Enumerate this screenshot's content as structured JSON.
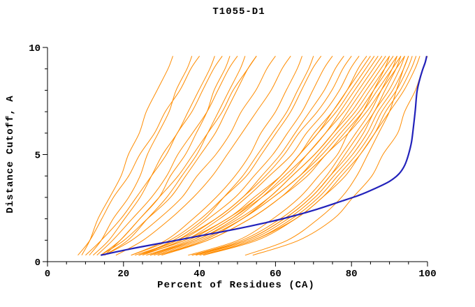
{
  "chart_data": {
    "type": "line",
    "title": "T1055-D1",
    "xlabel": "Percent of Residues (CA)",
    "ylabel": "Distance Cutoff, A",
    "xlim": [
      0,
      100
    ],
    "ylim": [
      0,
      10
    ],
    "x_major_ticks": [
      0,
      20,
      40,
      60,
      80,
      100
    ],
    "x_minor_step": 5,
    "y_major_ticks": [
      0,
      5,
      10
    ],
    "y_minor_step": 1,
    "grid": false,
    "legend": "none",
    "background_color": "#ffffff",
    "axis_color": "#000000",
    "prediction_color": "#ff8c00",
    "highlight_color": "#2222bb",
    "y_samples": [
      0.3,
      1,
      2,
      3,
      4,
      5,
      6,
      7,
      8,
      9,
      9.6
    ],
    "prediction_series_x": [
      [
        9,
        11,
        13,
        16,
        19,
        21,
        24,
        26,
        29,
        32,
        33
      ],
      [
        11,
        14,
        17,
        21,
        24,
        26,
        29,
        32,
        34,
        37,
        38
      ],
      [
        8,
        11,
        14,
        17,
        21,
        24,
        28,
        31,
        35,
        38,
        40
      ],
      [
        12,
        16,
        20,
        24,
        27,
        30,
        34,
        37,
        40,
        43,
        44
      ],
      [
        10,
        14,
        19,
        23,
        27,
        31,
        34,
        38,
        41,
        44,
        46
      ],
      [
        14,
        19,
        24,
        29,
        32,
        36,
        39,
        42,
        44,
        47,
        48
      ],
      [
        13,
        17,
        22,
        27,
        31,
        34,
        38,
        42,
        45,
        48,
        50
      ],
      [
        15,
        21,
        26,
        31,
        35,
        39,
        42,
        45,
        48,
        51,
        52
      ],
      [
        15,
        19,
        24,
        29,
        34,
        38,
        42,
        46,
        49,
        53,
        55
      ],
      [
        14,
        20,
        26,
        32,
        36,
        40,
        44,
        47,
        50,
        53,
        55
      ],
      [
        15,
        22,
        29,
        35,
        39,
        44,
        48,
        51,
        55,
        58,
        60
      ],
      [
        18,
        25,
        32,
        38,
        43,
        47,
        51,
        55,
        59,
        62,
        64
      ],
      [
        22,
        31,
        38,
        44,
        49,
        53,
        56,
        60,
        63,
        66,
        67
      ],
      [
        24,
        33,
        41,
        46,
        51,
        55,
        59,
        63,
        66,
        69,
        70
      ],
      [
        22,
        32,
        40,
        46,
        52,
        56,
        60,
        64,
        67,
        70,
        72
      ],
      [
        24,
        34,
        42,
        49,
        54,
        59,
        63,
        67,
        70,
        73,
        75
      ],
      [
        25,
        35,
        44,
        51,
        56,
        61,
        65,
        69,
        73,
        76,
        78
      ],
      [
        23,
        34,
        44,
        51,
        57,
        62,
        66,
        71,
        75,
        78,
        80
      ],
      [
        24,
        36,
        45,
        52,
        58,
        64,
        68,
        73,
        77,
        80,
        82
      ],
      [
        27,
        38,
        48,
        55,
        61,
        66,
        70,
        75,
        79,
        82,
        84
      ],
      [
        26,
        37,
        47,
        55,
        61,
        66,
        71,
        75,
        79,
        83,
        85
      ],
      [
        24,
        36,
        47,
        54,
        61,
        66,
        71,
        76,
        80,
        84,
        86
      ],
      [
        27,
        39,
        49,
        56,
        62,
        68,
        73,
        77,
        81,
        85,
        87
      ],
      [
        26,
        38,
        48,
        56,
        63,
        68,
        73,
        78,
        82,
        86,
        88
      ],
      [
        29,
        41,
        51,
        58,
        64,
        70,
        75,
        79,
        83,
        87,
        89
      ],
      [
        27,
        39,
        50,
        58,
        64,
        70,
        75,
        80,
        84,
        88,
        90
      ],
      [
        37,
        50,
        59,
        66,
        71,
        76,
        79,
        83,
        86,
        89,
        90
      ],
      [
        29,
        41,
        51,
        59,
        66,
        71,
        76,
        81,
        85,
        89,
        91
      ],
      [
        38,
        51,
        61,
        68,
        73,
        77,
        81,
        85,
        88,
        91,
        92
      ],
      [
        28,
        40,
        51,
        59,
        66,
        72,
        77,
        82,
        86,
        90,
        92
      ],
      [
        39,
        52,
        62,
        69,
        74,
        78,
        82,
        86,
        89,
        92,
        93
      ],
      [
        30,
        42,
        53,
        61,
        67,
        73,
        78,
        83,
        87,
        91,
        93
      ],
      [
        38,
        52,
        62,
        69,
        74,
        79,
        83,
        86,
        90,
        93,
        94
      ],
      [
        29,
        42,
        53,
        61,
        68,
        73,
        79,
        84,
        88,
        92,
        94
      ],
      [
        39,
        53,
        63,
        70,
        75,
        80,
        84,
        87,
        91,
        94,
        95
      ],
      [
        52,
        63,
        71,
        77,
        81,
        84,
        87,
        90,
        92,
        94,
        95
      ],
      [
        40,
        54,
        64,
        71,
        76,
        81,
        85,
        88,
        92,
        95,
        96
      ],
      [
        41,
        55,
        65,
        72,
        77,
        82,
        86,
        89,
        93,
        96,
        97
      ],
      [
        41,
        54,
        65,
        72,
        78,
        82,
        86,
        90,
        94,
        97,
        98
      ],
      [
        54,
        66,
        75,
        80,
        85,
        88,
        92,
        94,
        97,
        99,
        100
      ]
    ],
    "highlighted_series": [
      [
        14,
        0.3
      ],
      [
        22,
        0.6
      ],
      [
        31,
        0.9
      ],
      [
        40,
        1.2
      ],
      [
        49,
        1.5
      ],
      [
        57,
        1.8
      ],
      [
        64,
        2.1
      ],
      [
        71,
        2.45
      ],
      [
        77,
        2.8
      ],
      [
        82,
        3.1
      ],
      [
        86,
        3.4
      ],
      [
        90,
        3.75
      ],
      [
        92.5,
        4.1
      ],
      [
        94,
        4.5
      ],
      [
        95,
        5.0
      ],
      [
        95.8,
        5.6
      ],
      [
        96.3,
        6.3
      ],
      [
        96.8,
        7.1
      ],
      [
        97.2,
        7.9
      ],
      [
        97.8,
        8.4
      ],
      [
        98.6,
        8.9
      ],
      [
        99.4,
        9.3
      ],
      [
        99.8,
        9.6
      ]
    ]
  }
}
